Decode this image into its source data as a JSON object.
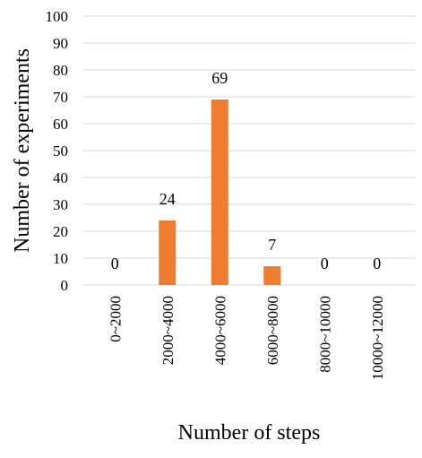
{
  "chart_data": {
    "type": "bar",
    "title": "",
    "xlabel": "Number of steps",
    "ylabel": "Number of experiments",
    "categories": [
      "0~2000",
      "2000~4000",
      "4000~6000",
      "6000~8000",
      "8000~10000",
      "10000~12000"
    ],
    "values": [
      0,
      24,
      69,
      7,
      0,
      0
    ],
    "data_labels": [
      "0",
      "24",
      "69",
      "7",
      "0",
      "0"
    ],
    "ylim": [
      0,
      100
    ],
    "yticks": [
      "0",
      "10",
      "20",
      "30",
      "40",
      "50",
      "60",
      "70",
      "80",
      "90",
      "100"
    ],
    "grid": true,
    "legend": "none",
    "bar_color": "#ED7D31",
    "grid_color": "#D9D9D9"
  }
}
